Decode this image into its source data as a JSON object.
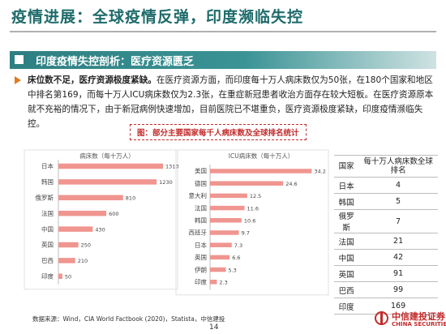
{
  "page": {
    "title": "疫情进展：全球疫情反弹，印度濒临失控",
    "banner": "印度疫情失控剖析：医疗资源匮乏",
    "para_bold": "床位数不足，医疗资源极度紧缺。",
    "para_rest": "在医疗资源方面，而印度每十万人病床数仅为50张，在180个国家和地区中排名第169，而每十万人ICU病床数仅为2.3张，在重症新冠患者收治方面存在较大短板。在医疗资源原本就不充裕的情况下，由于新冠病例快速增加，目前医院已不堪重负，医疗资源极度紧缺，印度疫情濒临失控。",
    "chart_caption": "图：部分主要国家每千人病床数及全球排名统计",
    "source": "数据来源：Wind，CIA World Factbook (2020)，Statista，中信建投",
    "page_number": "14",
    "logo_cn": "中信建投证券",
    "logo_en": "CHINA SECURITIES"
  },
  "colors": {
    "bar": "#f0958f",
    "accent": "#1f6b6b",
    "red": "#c32b2b"
  },
  "chart_data": [
    {
      "type": "bar",
      "orientation": "horizontal",
      "title": "病床数（每十万人）",
      "categories": [
        "日本",
        "韩国",
        "俄罗斯",
        "法国",
        "中国",
        "英国",
        "巴西",
        "印度"
      ],
      "values": [
        1310,
        1230,
        810,
        600,
        430,
        250,
        210,
        50
      ],
      "xlim": [
        0,
        1350
      ]
    },
    {
      "type": "bar",
      "orientation": "horizontal",
      "title": "ICU病床数（每十万人）",
      "categories": [
        "美国",
        "德国",
        "意大利",
        "法国",
        "韩国",
        "西班牙",
        "日本",
        "英国",
        "伊朗",
        "印度"
      ],
      "values": [
        34.2,
        24.6,
        12.5,
        11.6,
        10.6,
        9.7,
        7.3,
        6.6,
        5.3,
        2.3
      ],
      "xlim": [
        0,
        36
      ]
    },
    {
      "type": "table",
      "columns": [
        "国家",
        "每十万人病床数全球排名"
      ],
      "rows": [
        [
          "日本",
          "4"
        ],
        [
          "韩国",
          "5"
        ],
        [
          "俄罗斯",
          "7"
        ],
        [
          "法国",
          "21"
        ],
        [
          "中国",
          "42"
        ],
        [
          "英国",
          "91"
        ],
        [
          "巴西",
          "99"
        ],
        [
          "印度",
          "169"
        ]
      ]
    }
  ]
}
